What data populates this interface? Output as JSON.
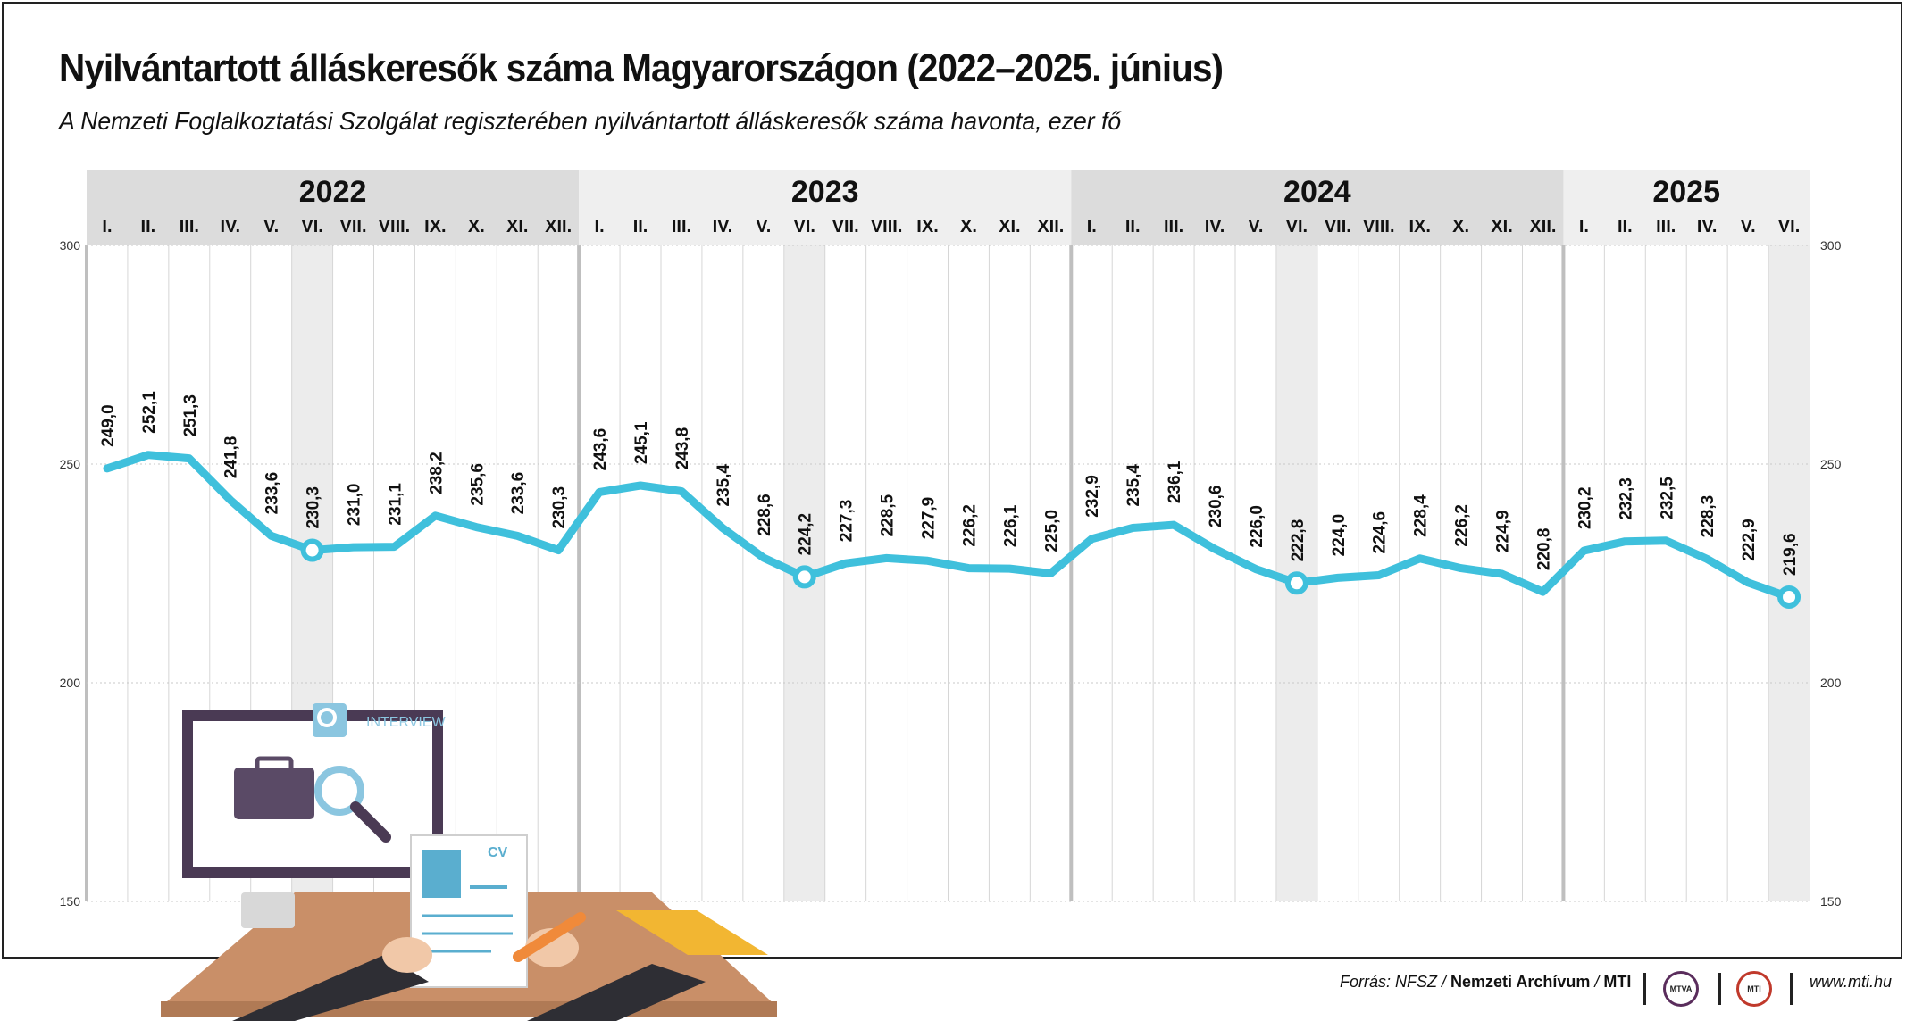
{
  "title": "Nyilvántartott álláskeresők száma Magyarországon (2022–2025. június)",
  "subtitle": "A Nemzeti Foglalkoztatási Szolgálat regiszterében nyilvántartott álláskeresők száma havonta, ezer fő",
  "footer": {
    "source_prefix": "Forrás: NFSZ / ",
    "source_org": "Nemzeti Archívum",
    "source_sep": " / ",
    "source_agency": "MTI",
    "logo_mtva": "MTVA",
    "logo_mti": "MTI",
    "website": "www.mti.hu"
  },
  "illustration": {
    "interview_label": "INTERVIEW",
    "cv_label": "CV"
  },
  "colors": {
    "line": "#3fc0dc",
    "header_dark": "#dcdcdc",
    "header_light": "#efefef",
    "highlight_column": "#ececec",
    "frame": "#222222"
  },
  "chart_data": {
    "type": "line",
    "title": "Nyilvántartott álláskeresők száma Magyarországon (2022–2025. június)",
    "subtitle": "A Nemzeti Foglalkoztatási Szolgálat regiszterében nyilvántartott álláskeresők száma havonta, ezer fő",
    "years": [
      "2022",
      "2023",
      "2024",
      "2025"
    ],
    "month_labels": [
      "I.",
      "II.",
      "III.",
      "IV.",
      "V.",
      "VI.",
      "VII.",
      "VIII.",
      "IX.",
      "X.",
      "XI.",
      "XII."
    ],
    "categories": [
      "2022 I.",
      "2022 II.",
      "2022 III.",
      "2022 IV.",
      "2022 V.",
      "2022 VI.",
      "2022 VII.",
      "2022 VIII.",
      "2022 IX.",
      "2022 X.",
      "2022 XI.",
      "2022 XII.",
      "2023 I.",
      "2023 II.",
      "2023 III.",
      "2023 IV.",
      "2023 V.",
      "2023 VI.",
      "2023 VII.",
      "2023 VIII.",
      "2023 IX.",
      "2023 X.",
      "2023 XI.",
      "2023 XII.",
      "2024 I.",
      "2024 II.",
      "2024 III.",
      "2024 IV.",
      "2024 V.",
      "2024 VI.",
      "2024 VII.",
      "2024 VIII.",
      "2024 IX.",
      "2024 X.",
      "2024 XI.",
      "2024 XII.",
      "2025 I.",
      "2025 II.",
      "2025 III.",
      "2025 IV.",
      "2025 V.",
      "2025 VI."
    ],
    "values": [
      249.0,
      252.1,
      251.3,
      241.8,
      233.6,
      230.3,
      231.0,
      231.1,
      238.2,
      235.6,
      233.6,
      230.3,
      243.6,
      245.1,
      243.8,
      235.4,
      228.6,
      224.2,
      227.3,
      228.5,
      227.9,
      226.2,
      226.1,
      225.0,
      232.9,
      235.4,
      236.1,
      230.6,
      226.0,
      222.8,
      224.0,
      224.6,
      228.4,
      226.2,
      224.9,
      220.8,
      230.2,
      232.3,
      232.5,
      228.3,
      222.9,
      219.6
    ],
    "value_labels": [
      "249,0",
      "252,1",
      "251,3",
      "241,8",
      "233,6",
      "230,3",
      "231,0",
      "231,1",
      "238,2",
      "235,6",
      "233,6",
      "230,3",
      "243,6",
      "245,1",
      "243,8",
      "235,4",
      "228,6",
      "224,2",
      "227,3",
      "228,5",
      "227,9",
      "226,2",
      "226,1",
      "225,0",
      "232,9",
      "235,4",
      "236,1",
      "230,6",
      "226,0",
      "222,8",
      "224,0",
      "224,6",
      "228,4",
      "226,2",
      "224,9",
      "220,8",
      "230,2",
      "232,3",
      "232,5",
      "228,3",
      "222,9",
      "219,6"
    ],
    "highlighted_months": [
      "2022 VI.",
      "2023 VI.",
      "2024 VI.",
      "2025 VI."
    ],
    "ylim": [
      150,
      300
    ],
    "yticks": [
      150,
      200,
      250,
      300
    ],
    "xlabel": "",
    "ylabel": "",
    "grid": true,
    "legend": "none"
  }
}
